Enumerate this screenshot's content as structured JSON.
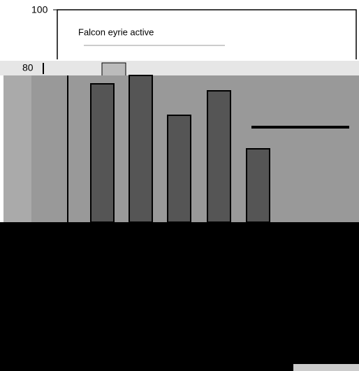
{
  "axis": {
    "ticks": [
      "100",
      "80"
    ]
  },
  "legend": {
    "label": "Falcon eyrie active"
  }
}
